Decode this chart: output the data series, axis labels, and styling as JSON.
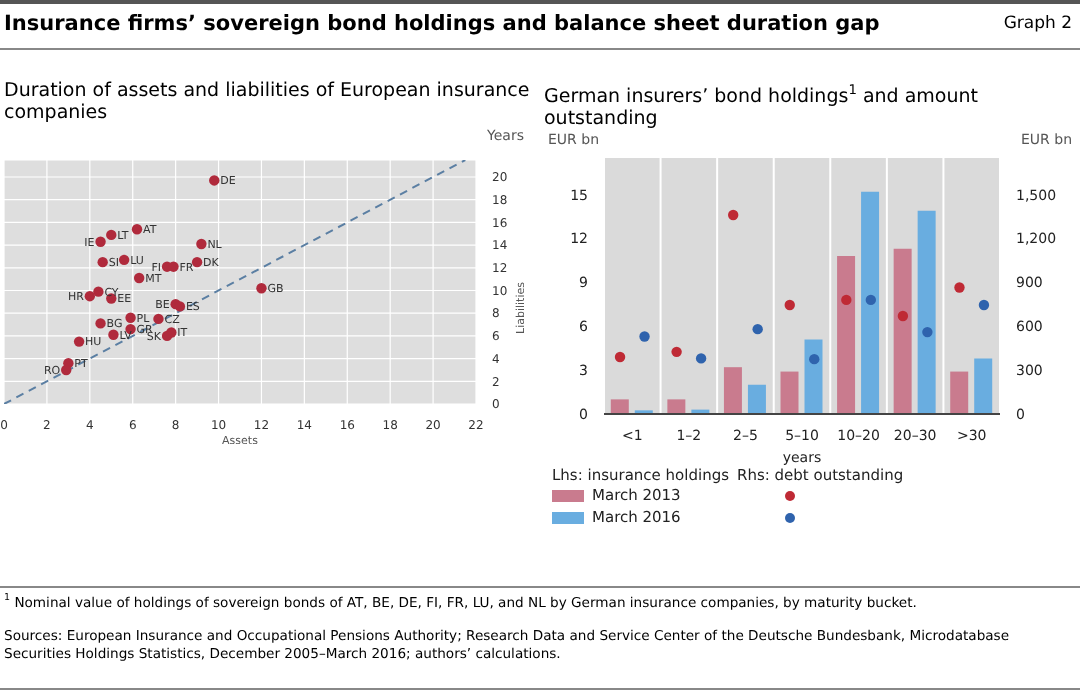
{
  "chart_data": [
    {
      "type": "scatter",
      "title": "Insurance firms’ sovereign bond holdings and balance sheet duration gap",
      "subtitle": "Duration of assets and liabilities of European insurance companies",
      "xlabel": "Assets",
      "ylabel": "Liabilities",
      "annotations": [
        "Graph 2",
        "Years",
        {
          "text": "DE",
          "x": 9.8,
          "y": 19.7
        },
        {
          "text": "AT",
          "x": 6.2,
          "y": 15.4
        },
        {
          "text": "LT",
          "x": 5.0,
          "y": 14.9
        },
        {
          "text": "IE",
          "x": 4.5,
          "y": 14.3
        },
        {
          "text": "NL",
          "x": 9.2,
          "y": 14.1
        },
        {
          "text": "SI",
          "x": 4.6,
          "y": 12.5
        },
        {
          "text": "LU",
          "x": 5.6,
          "y": 12.7
        },
        {
          "text": "FI",
          "x": 7.6,
          "y": 12.1
        },
        {
          "text": "FR",
          "x": 7.9,
          "y": 12.1
        },
        {
          "text": "DK",
          "x": 9.0,
          "y": 12.5
        },
        {
          "text": "MT",
          "x": 6.3,
          "y": 11.1
        },
        {
          "text": "GB",
          "x": 12.0,
          "y": 10.2
        },
        {
          "text": "CY",
          "x": 4.4,
          "y": 9.9
        },
        {
          "text": "HR",
          "x": 4.0,
          "y": 9.5
        },
        {
          "text": "EE",
          "x": 5.0,
          "y": 9.3
        },
        {
          "text": "BE",
          "x": 8.0,
          "y": 8.8
        },
        {
          "text": "ES",
          "x": 8.2,
          "y": 8.6
        },
        {
          "text": "PL",
          "x": 5.9,
          "y": 7.6
        },
        {
          "text": "BG",
          "x": 4.5,
          "y": 7.1
        },
        {
          "text": "CZ",
          "x": 7.2,
          "y": 7.5
        },
        {
          "text": "GR",
          "x": 5.9,
          "y": 6.6
        },
        {
          "text": "LV",
          "x": 5.1,
          "y": 6.1
        },
        {
          "text": "IT",
          "x": 7.8,
          "y": 6.3
        },
        {
          "text": "SK",
          "x": 7.6,
          "y": 6.0
        },
        {
          "text": "HU",
          "x": 3.5,
          "y": 5.5
        },
        {
          "text": "PT",
          "x": 3.0,
          "y": 3.6
        },
        {
          "text": "RO",
          "x": 2.9,
          "y": 3.0
        }
      ],
      "series": [
        {
          "marker": "circle",
          "color": "#b02a3c",
          "x": [
            9.8,
            6.2,
            5.0,
            4.5,
            9.2,
            4.6,
            5.6,
            7.6,
            7.9,
            9.0,
            6.3,
            12.0,
            4.4,
            4.0,
            5.0,
            8.0,
            8.2,
            5.9,
            4.5,
            7.2,
            5.9,
            5.1,
            7.8,
            7.6,
            3.5,
            3.0,
            2.9
          ],
          "values": [
            19.7,
            15.4,
            14.9,
            14.3,
            14.1,
            12.5,
            12.7,
            12.1,
            12.1,
            12.5,
            11.1,
            10.2,
            9.9,
            9.5,
            9.3,
            8.8,
            8.6,
            7.6,
            7.1,
            7.5,
            6.6,
            6.1,
            6.3,
            6.0,
            5.5,
            3.6,
            3.0
          ]
        },
        {
          "type": "line",
          "marker": "none",
          "color": "#5b7fa3",
          "line_style": "dashed",
          "x": [
            0,
            21.5
          ],
          "values": [
            0,
            21.5
          ]
        }
      ],
      "xlim": [
        0,
        22
      ],
      "xticks": [
        0,
        2,
        4,
        6,
        8,
        10,
        12,
        14,
        16,
        18,
        20,
        22
      ],
      "ylim": [
        0,
        21.5
      ],
      "yticks": [
        0,
        2,
        4,
        6,
        8,
        10,
        12,
        14,
        16,
        18,
        20
      ],
      "grid": true
    },
    {
      "type": "bar",
      "title": "German insurers’ bond holdings$^{1}$ and amount outstanding",
      "xlabel": "years",
      "ylabel": "EUR bn",
      "y2label": "EUR bn",
      "categories": [
        "<1",
        "1–2",
        "2–5",
        "5–10",
        "10–20",
        "20–30",
        ">30"
      ],
      "series": [
        {
          "name": "March 2013",
          "color": "#c97b8e",
          "values": [
            1.0,
            1.0,
            3.2,
            2.9,
            10.8,
            11.3,
            2.9
          ]
        },
        {
          "name": "March 2016",
          "color": "#69ade0",
          "values": [
            0.25,
            0.3,
            2.0,
            5.1,
            15.2,
            13.9,
            3.8
          ]
        },
        {
          "type": "scatter",
          "axis": "y2",
          "color": "#bf2a35",
          "values": [
            390,
            425,
            1360,
            745,
            780,
            670,
            865
          ]
        },
        {
          "type": "scatter",
          "axis": "y2",
          "color": "#2f63ad",
          "values": [
            530,
            380,
            580,
            375,
            780,
            560,
            745
          ]
        }
      ],
      "ylim": [
        0,
        17.5
      ],
      "yticks": [
        0,
        3,
        6,
        9,
        12,
        15
      ],
      "y2lim": [
        0,
        1750
      ],
      "y2ticks": [
        0,
        300,
        600,
        900,
        {
          "value": 1200,
          "label": "1,200"
        },
        {
          "value": 1500,
          "label": "1,500"
        }
      ],
      "grid": "x",
      "legend": "bottom",
      "marker": "circle",
      "annotations": [
        "Lhs: insurance holdings",
        "Rhs: debt outstanding",
        "$^{1}$ Nominal value of holdings of sovereign bonds of AT, BE, DE, FI, FR, LU, and NL by German insurance companies, by maturity bucket.",
        "Sources: European Insurance and Occupational Pensions Authority; Research Data and Service Center of the Deutsche Bundesbank, Microdatabase Securities Holdings Statistics, December 2005–March 2016; authors’ calculations."
      ]
    }
  ]
}
